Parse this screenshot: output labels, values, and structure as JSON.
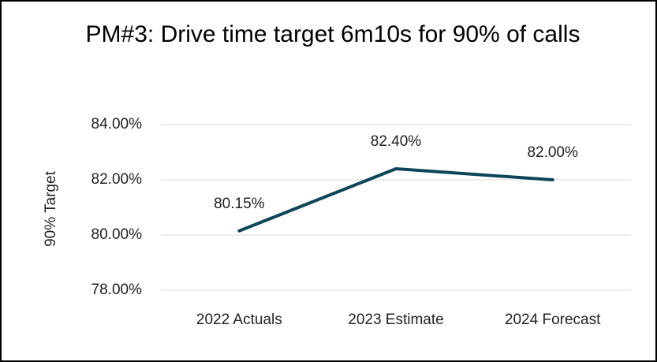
{
  "chart_data": {
    "type": "line",
    "title": "PM#3: Drive time target 6m10s for 90% of calls",
    "y_label": "90% Target",
    "categories": [
      "2022 Actuals",
      "2023 Estimate",
      "2024 Forecast"
    ],
    "series": [
      {
        "name": "90% Target",
        "color": "#0d4658",
        "values": [
          80.15,
          82.4,
          82.0
        ],
        "value_labels": [
          "80.15%",
          "82.40%",
          "82.00%"
        ]
      }
    ],
    "ylim": [
      78,
      84
    ],
    "yticks": [
      {
        "value": 78,
        "label": "78.00%"
      },
      {
        "value": 80,
        "label": "80.00%"
      },
      {
        "value": 82,
        "label": "82.00%"
      },
      {
        "value": 84,
        "label": "84.00%"
      }
    ],
    "grid": true
  }
}
